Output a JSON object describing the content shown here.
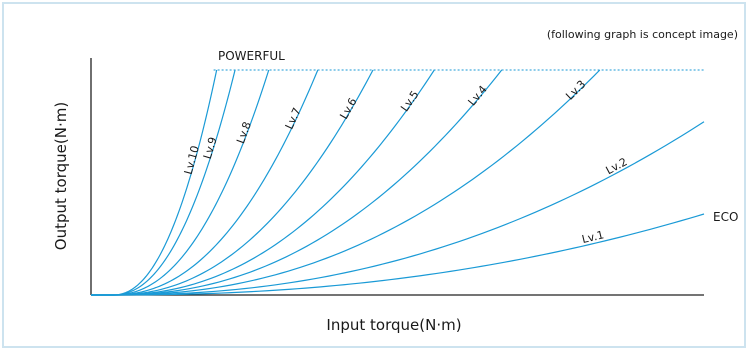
{
  "chart_data": {
    "type": "line",
    "title": "",
    "note": "(following graph is concept image)",
    "xlabel": "Input torque(N·m)",
    "ylabel": "Output torque(N·m)",
    "xlim": [
      0,
      1
    ],
    "ylim": [
      0,
      1
    ],
    "grid": false,
    "ticks_shown": false,
    "end_labels": {
      "top": "POWERFUL",
      "right": "ECO"
    },
    "line_color": "#1a9ad6",
    "limit_line": {
      "y": 1.0,
      "style": "dotted"
    },
    "series": [
      {
        "name": "Lv.1",
        "saturation_x": null,
        "end_y": 0.36
      },
      {
        "name": "Lv.2",
        "saturation_x": null,
        "end_y": 0.77
      },
      {
        "name": "Lv.3",
        "saturation_x": 0.83,
        "end_y": 1.0
      },
      {
        "name": "Lv.4",
        "saturation_x": 0.67,
        "end_y": 1.0
      },
      {
        "name": "Lv.5",
        "saturation_x": 0.56,
        "end_y": 1.0
      },
      {
        "name": "Lv.6",
        "saturation_x": 0.46,
        "end_y": 1.0
      },
      {
        "name": "Lv.7",
        "saturation_x": 0.37,
        "end_y": 1.0
      },
      {
        "name": "Lv.8",
        "saturation_x": 0.29,
        "end_y": 1.0
      },
      {
        "name": "Lv.9",
        "saturation_x": 0.235,
        "end_y": 1.0
      },
      {
        "name": "Lv.10",
        "saturation_x": 0.205,
        "end_y": 1.0
      }
    ]
  }
}
